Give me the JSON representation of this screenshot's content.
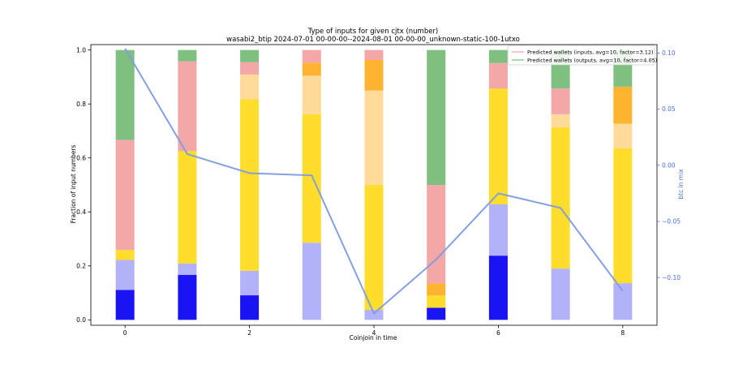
{
  "chart_data": {
    "type": "bar",
    "title_line1": "Type of inputs for given cjtx (number)",
    "title_line2": "wasabi2_btip 2024-07-01 00-00-00--2024-08-01 00-00-00_unknown-static-100-1utxo",
    "xlabel": "Coinjoin in time",
    "ylabel": "Fraction of input numbers",
    "y2label": "btc in mix",
    "x": [
      0,
      1,
      2,
      3,
      4,
      5,
      6,
      7,
      8
    ],
    "xticks": [
      "0",
      "2",
      "4",
      "6",
      "8"
    ],
    "xtick_values": [
      0,
      2,
      4,
      6,
      8
    ],
    "xlim": [
      -0.55,
      8.55
    ],
    "ylim": [
      -0.02,
      1.02
    ],
    "yticks": [
      "0.0",
      "0.2",
      "0.4",
      "0.6",
      "0.8",
      "1.0"
    ],
    "ytick_values": [
      0.0,
      0.2,
      0.4,
      0.6,
      0.8,
      1.0
    ],
    "y2lim": [
      -0.1425,
      0.1075
    ],
    "y2ticks": [
      "−0.10",
      "−0.05",
      "0.00",
      "0.05",
      "0.10"
    ],
    "y2tick_values": [
      -0.1,
      -0.05,
      0.0,
      0.05,
      0.1
    ],
    "stack_colors": [
      "#1a14f5",
      "#b2b2f8",
      "#fedd2c",
      "#ffda98",
      "#feb331",
      "#f4a7a7",
      "#7fc080"
    ],
    "series": [
      {
        "values": [
          0.111,
          0.167,
          0.091,
          0.0,
          0.0,
          0.045,
          0.238,
          0.0,
          0.0
        ]
      },
      {
        "values": [
          0.111,
          0.042,
          0.091,
          0.286,
          0.037,
          0.0,
          0.19,
          0.19,
          0.136
        ]
      },
      {
        "values": [
          0.037,
          0.416,
          0.636,
          0.476,
          0.463,
          0.045,
          0.429,
          0.524,
          0.5
        ]
      },
      {
        "values": [
          0.0,
          0.0,
          0.091,
          0.143,
          0.35,
          0.0,
          0.0,
          0.048,
          0.091
        ]
      },
      {
        "values": [
          0.0,
          0.0,
          0.0,
          0.048,
          0.113,
          0.045,
          0.0,
          0.0,
          0.137
        ]
      },
      {
        "values": [
          0.408,
          0.333,
          0.046,
          0.047,
          0.037,
          0.365,
          0.095,
          0.095,
          0.0
        ]
      },
      {
        "values": [
          0.333,
          0.042,
          0.045,
          0.0,
          0.0,
          0.5,
          0.048,
          0.143,
          0.136
        ]
      }
    ],
    "line_series": {
      "axis": "right",
      "color": "#7e9be0",
      "values": [
        0.104,
        0.01,
        -0.007,
        -0.009,
        -0.132,
        -0.084,
        -0.025,
        -0.038,
        -0.112
      ]
    },
    "legend": {
      "placement": "top-right",
      "entries": [
        {
          "label": "Predicted wallets (inputs, avg=10, factor=3.12)",
          "color": "#f4a7a7"
        },
        {
          "label": "Predicted wallets (outputs, avg=10, factor=4.05)",
          "color": "#7fc080"
        }
      ]
    }
  }
}
